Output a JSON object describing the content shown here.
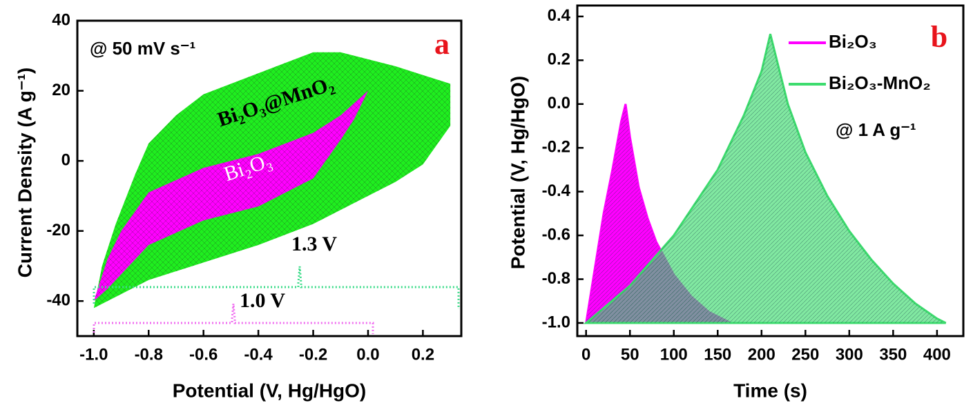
{
  "chart_data": [
    {
      "type": "area-loop",
      "xlabel": "Potential (V, Hg/HgO)",
      "ylabel": "Current Density (A g⁻¹)",
      "annotations": [
        "@ 50 mV s⁻¹",
        "a",
        "1.3 V",
        "1.0 V"
      ],
      "xlim": [
        -1.06,
        0.34
      ],
      "ylim": [
        -50,
        40
      ],
      "xticks": [
        {
          "value": -1.0,
          "label": "-1.0"
        },
        -0.8,
        -0.6,
        -0.4,
        -0.2,
        {
          "value": 0.0,
          "label": "0.0"
        },
        0.2
      ],
      "yticks": [
        -40,
        -20,
        0,
        20,
        40
      ],
      "series": [
        {
          "name": "Bi₂O₃@MnO₂",
          "color": "#1fee1f",
          "x": [
            -1.0,
            -0.97,
            -0.92,
            -0.85,
            -0.8,
            -0.7,
            -0.6,
            -0.5,
            -0.4,
            -0.3,
            -0.2,
            -0.1,
            0.0,
            0.1,
            0.2,
            0.3,
            0.3,
            0.2,
            0.1,
            0.0,
            -0.2,
            -0.4,
            -0.6,
            -0.8,
            -0.9,
            -1.0
          ],
          "values": [
            -42,
            -30,
            -18,
            -4,
            5,
            13,
            19,
            22,
            25,
            28,
            31,
            31,
            29,
            27,
            24.5,
            22,
            10,
            -1,
            -6,
            -10,
            -18,
            -24,
            -29,
            -34,
            -38,
            -42
          ]
        },
        {
          "name": "Bi₂O₃",
          "color": "#ff00ff",
          "x": [
            -1.0,
            -0.95,
            -0.9,
            -0.8,
            -0.6,
            -0.4,
            -0.2,
            -0.1,
            0.0,
            -0.05,
            -0.1,
            -0.2,
            -0.4,
            -0.6,
            -0.8,
            -0.95,
            -1.0
          ],
          "values": [
            -40,
            -28,
            -20,
            -9,
            -2,
            2,
            8,
            13,
            20,
            12,
            6,
            -5,
            -13,
            -17,
            -24,
            -36.5,
            -40
          ]
        }
      ]
    },
    {
      "type": "area",
      "xlabel": "Time (s)",
      "ylabel": "Potential (V, Hg/HgO)",
      "annotations": [
        "@ 1 A g⁻¹",
        "b"
      ],
      "xlim": [
        -10,
        430
      ],
      "ylim": [
        -1.06,
        0.45
      ],
      "xticks": [
        0,
        50,
        100,
        150,
        200,
        250,
        300,
        350,
        400
      ],
      "yticks": [
        {
          "value": -1.0,
          "label": "-1.0"
        },
        -0.8,
        -0.6,
        -0.4,
        -0.2,
        {
          "value": 0.0,
          "label": "0.0"
        },
        0.2,
        0.4
      ],
      "series": [
        {
          "name": "Bi₂O₃",
          "color": "#ff00ff",
          "x": [
            0,
            10,
            20,
            30,
            40,
            45,
            50,
            60,
            70,
            80,
            100,
            120,
            140,
            165
          ],
          "values": [
            -1.0,
            -0.75,
            -0.5,
            -0.3,
            -0.08,
            0.0,
            -0.15,
            -0.38,
            -0.52,
            -0.63,
            -0.78,
            -0.88,
            -0.95,
            -1.0
          ]
        },
        {
          "name": "Bi₂O₃-MnO₂",
          "color": "#3ddc6e",
          "x": [
            0,
            50,
            100,
            150,
            180,
            200,
            210,
            230,
            250,
            275,
            300,
            325,
            350,
            375,
            400,
            410
          ],
          "values": [
            -1.0,
            -0.83,
            -0.6,
            -0.3,
            -0.05,
            0.15,
            0.32,
            0.0,
            -0.22,
            -0.42,
            -0.58,
            -0.71,
            -0.82,
            -0.91,
            -0.98,
            -1.0
          ]
        }
      ]
    }
  ]
}
